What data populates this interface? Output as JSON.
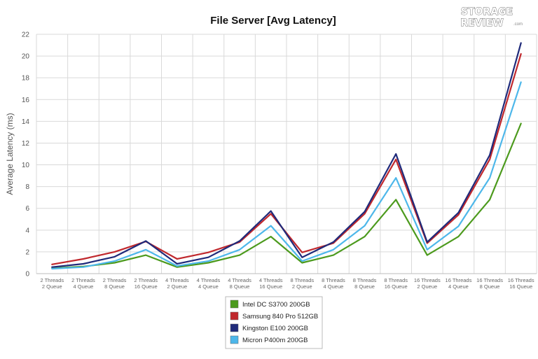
{
  "chart_data": {
    "type": "line",
    "title": "File Server [Avg Latency]",
    "ylabel": "Average Latency (ms)",
    "xlabel": "",
    "ylim": [
      0,
      22
    ],
    "yticks": [
      0,
      2,
      4,
      6,
      8,
      10,
      12,
      14,
      16,
      18,
      20,
      22
    ],
    "grid": true,
    "legend_position": "bottom-center",
    "categories": [
      [
        "2 Threads",
        "2 Queue"
      ],
      [
        "2 Threads",
        "4 Queue"
      ],
      [
        "2 Threads",
        "8 Queue"
      ],
      [
        "2 Threads",
        "16 Queue"
      ],
      [
        "4 Threads",
        "2 Queue"
      ],
      [
        "4 Threads",
        "4 Queue"
      ],
      [
        "4 Threads",
        "8 Queue"
      ],
      [
        "4 Threads",
        "16 Queue"
      ],
      [
        "8 Threads",
        "2 Queue"
      ],
      [
        "8 Threads",
        "4 Queue"
      ],
      [
        "8 Threads",
        "8 Queue"
      ],
      [
        "8 Threads",
        "16 Queue"
      ],
      [
        "16 Threads",
        "2 Queue"
      ],
      [
        "16 Threads",
        "4 Queue"
      ],
      [
        "16 Threads",
        "8 Queue"
      ],
      [
        "16 Threads",
        "16 Queue"
      ]
    ],
    "series": [
      {
        "name": "Intel DC S3700 200GB",
        "color": "#4c9a1d",
        "values": [
          0.5,
          0.65,
          1.0,
          1.7,
          0.6,
          1.0,
          1.7,
          3.4,
          1.0,
          1.7,
          3.4,
          6.8,
          1.7,
          3.4,
          6.8,
          13.8
        ]
      },
      {
        "name": "Samsung 840 Pro 512GB",
        "color": "#c0282d",
        "values": [
          0.85,
          1.35,
          2.0,
          2.95,
          1.35,
          1.95,
          2.9,
          5.5,
          1.95,
          2.8,
          5.5,
          10.5,
          2.8,
          5.4,
          10.5,
          20.2
        ]
      },
      {
        "name": "Kingston E100 200GB",
        "color": "#1f2a7a",
        "values": [
          0.6,
          0.9,
          1.55,
          3.0,
          0.9,
          1.5,
          3.0,
          5.75,
          1.5,
          2.9,
          5.7,
          11.0,
          2.9,
          5.6,
          10.9,
          21.2
        ]
      },
      {
        "name": "Micron P400m 200GB",
        "color": "#4db7ea",
        "values": [
          0.45,
          0.6,
          1.15,
          2.2,
          0.7,
          1.15,
          2.2,
          4.4,
          1.15,
          2.2,
          4.4,
          8.8,
          2.2,
          4.35,
          8.8,
          17.6
        ]
      }
    ]
  },
  "logo": {
    "line1": "STORAGE",
    "line2": "REVIEW",
    "suffix": ".com"
  },
  "colors": {
    "grid": "#d9d9d9",
    "axis": "#bbbbbb"
  }
}
